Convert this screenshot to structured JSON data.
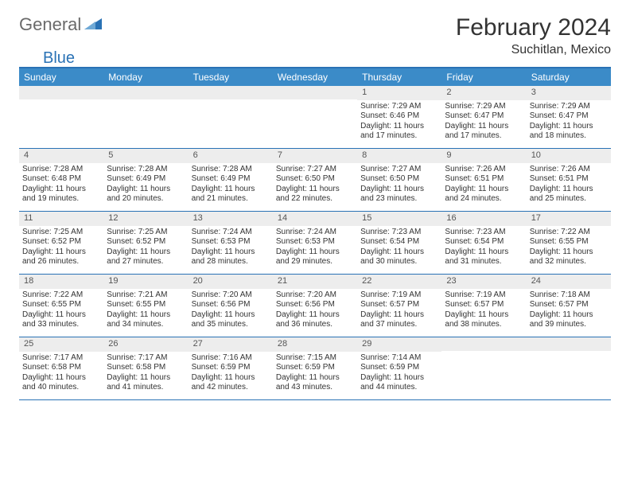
{
  "brand": {
    "part1": "General",
    "part2": "Blue"
  },
  "title": "February 2024",
  "location": "Suchitlan, Mexico",
  "colors": {
    "header_bg": "#3b8bc8",
    "border": "#2a72b5",
    "daynum_bg": "#ededed",
    "text": "#333333",
    "logo_gray": "#6a6a6a",
    "logo_blue": "#2a72b5"
  },
  "day_headers": [
    "Sunday",
    "Monday",
    "Tuesday",
    "Wednesday",
    "Thursday",
    "Friday",
    "Saturday"
  ],
  "weeks": [
    [
      {
        "n": "",
        "sr": "",
        "ss": "",
        "dl": ""
      },
      {
        "n": "",
        "sr": "",
        "ss": "",
        "dl": ""
      },
      {
        "n": "",
        "sr": "",
        "ss": "",
        "dl": ""
      },
      {
        "n": "",
        "sr": "",
        "ss": "",
        "dl": ""
      },
      {
        "n": "1",
        "sr": "Sunrise: 7:29 AM",
        "ss": "Sunset: 6:46 PM",
        "dl": "Daylight: 11 hours and 17 minutes."
      },
      {
        "n": "2",
        "sr": "Sunrise: 7:29 AM",
        "ss": "Sunset: 6:47 PM",
        "dl": "Daylight: 11 hours and 17 minutes."
      },
      {
        "n": "3",
        "sr": "Sunrise: 7:29 AM",
        "ss": "Sunset: 6:47 PM",
        "dl": "Daylight: 11 hours and 18 minutes."
      }
    ],
    [
      {
        "n": "4",
        "sr": "Sunrise: 7:28 AM",
        "ss": "Sunset: 6:48 PM",
        "dl": "Daylight: 11 hours and 19 minutes."
      },
      {
        "n": "5",
        "sr": "Sunrise: 7:28 AM",
        "ss": "Sunset: 6:49 PM",
        "dl": "Daylight: 11 hours and 20 minutes."
      },
      {
        "n": "6",
        "sr": "Sunrise: 7:28 AM",
        "ss": "Sunset: 6:49 PM",
        "dl": "Daylight: 11 hours and 21 minutes."
      },
      {
        "n": "7",
        "sr": "Sunrise: 7:27 AM",
        "ss": "Sunset: 6:50 PM",
        "dl": "Daylight: 11 hours and 22 minutes."
      },
      {
        "n": "8",
        "sr": "Sunrise: 7:27 AM",
        "ss": "Sunset: 6:50 PM",
        "dl": "Daylight: 11 hours and 23 minutes."
      },
      {
        "n": "9",
        "sr": "Sunrise: 7:26 AM",
        "ss": "Sunset: 6:51 PM",
        "dl": "Daylight: 11 hours and 24 minutes."
      },
      {
        "n": "10",
        "sr": "Sunrise: 7:26 AM",
        "ss": "Sunset: 6:51 PM",
        "dl": "Daylight: 11 hours and 25 minutes."
      }
    ],
    [
      {
        "n": "11",
        "sr": "Sunrise: 7:25 AM",
        "ss": "Sunset: 6:52 PM",
        "dl": "Daylight: 11 hours and 26 minutes."
      },
      {
        "n": "12",
        "sr": "Sunrise: 7:25 AM",
        "ss": "Sunset: 6:52 PM",
        "dl": "Daylight: 11 hours and 27 minutes."
      },
      {
        "n": "13",
        "sr": "Sunrise: 7:24 AM",
        "ss": "Sunset: 6:53 PM",
        "dl": "Daylight: 11 hours and 28 minutes."
      },
      {
        "n": "14",
        "sr": "Sunrise: 7:24 AM",
        "ss": "Sunset: 6:53 PM",
        "dl": "Daylight: 11 hours and 29 minutes."
      },
      {
        "n": "15",
        "sr": "Sunrise: 7:23 AM",
        "ss": "Sunset: 6:54 PM",
        "dl": "Daylight: 11 hours and 30 minutes."
      },
      {
        "n": "16",
        "sr": "Sunrise: 7:23 AM",
        "ss": "Sunset: 6:54 PM",
        "dl": "Daylight: 11 hours and 31 minutes."
      },
      {
        "n": "17",
        "sr": "Sunrise: 7:22 AM",
        "ss": "Sunset: 6:55 PM",
        "dl": "Daylight: 11 hours and 32 minutes."
      }
    ],
    [
      {
        "n": "18",
        "sr": "Sunrise: 7:22 AM",
        "ss": "Sunset: 6:55 PM",
        "dl": "Daylight: 11 hours and 33 minutes."
      },
      {
        "n": "19",
        "sr": "Sunrise: 7:21 AM",
        "ss": "Sunset: 6:55 PM",
        "dl": "Daylight: 11 hours and 34 minutes."
      },
      {
        "n": "20",
        "sr": "Sunrise: 7:20 AM",
        "ss": "Sunset: 6:56 PM",
        "dl": "Daylight: 11 hours and 35 minutes."
      },
      {
        "n": "21",
        "sr": "Sunrise: 7:20 AM",
        "ss": "Sunset: 6:56 PM",
        "dl": "Daylight: 11 hours and 36 minutes."
      },
      {
        "n": "22",
        "sr": "Sunrise: 7:19 AM",
        "ss": "Sunset: 6:57 PM",
        "dl": "Daylight: 11 hours and 37 minutes."
      },
      {
        "n": "23",
        "sr": "Sunrise: 7:19 AM",
        "ss": "Sunset: 6:57 PM",
        "dl": "Daylight: 11 hours and 38 minutes."
      },
      {
        "n": "24",
        "sr": "Sunrise: 7:18 AM",
        "ss": "Sunset: 6:57 PM",
        "dl": "Daylight: 11 hours and 39 minutes."
      }
    ],
    [
      {
        "n": "25",
        "sr": "Sunrise: 7:17 AM",
        "ss": "Sunset: 6:58 PM",
        "dl": "Daylight: 11 hours and 40 minutes."
      },
      {
        "n": "26",
        "sr": "Sunrise: 7:17 AM",
        "ss": "Sunset: 6:58 PM",
        "dl": "Daylight: 11 hours and 41 minutes."
      },
      {
        "n": "27",
        "sr": "Sunrise: 7:16 AM",
        "ss": "Sunset: 6:59 PM",
        "dl": "Daylight: 11 hours and 42 minutes."
      },
      {
        "n": "28",
        "sr": "Sunrise: 7:15 AM",
        "ss": "Sunset: 6:59 PM",
        "dl": "Daylight: 11 hours and 43 minutes."
      },
      {
        "n": "29",
        "sr": "Sunrise: 7:14 AM",
        "ss": "Sunset: 6:59 PM",
        "dl": "Daylight: 11 hours and 44 minutes."
      },
      {
        "n": "",
        "sr": "",
        "ss": "",
        "dl": ""
      },
      {
        "n": "",
        "sr": "",
        "ss": "",
        "dl": ""
      }
    ]
  ]
}
